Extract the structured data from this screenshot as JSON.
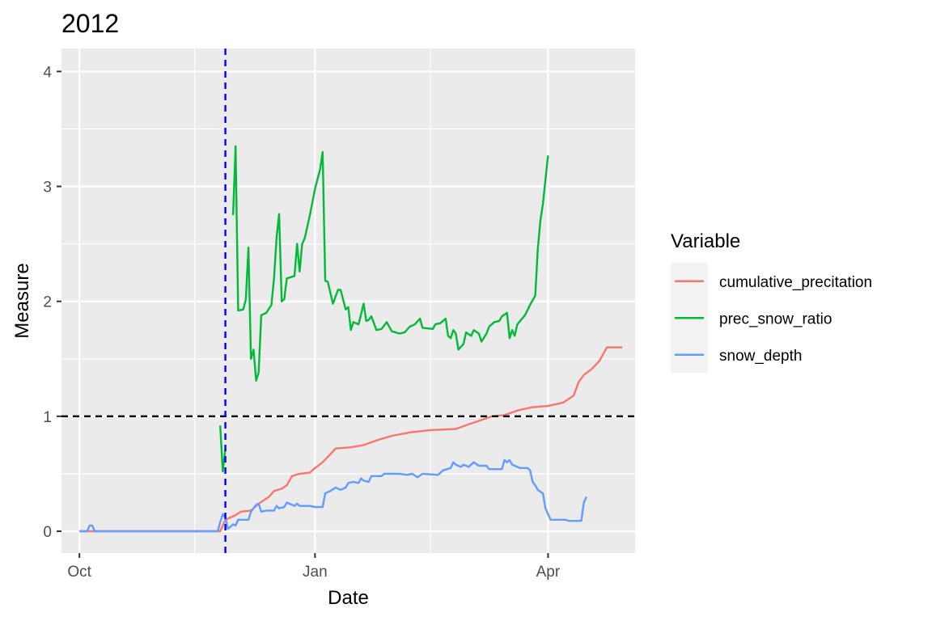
{
  "chart_data": {
    "type": "line",
    "title": "2012",
    "xlabel": "Date",
    "ylabel": "Measure",
    "x_type": "date",
    "xlim": [
      "2011-09-24",
      "2012-05-05"
    ],
    "ylim": [
      -0.19,
      4.2
    ],
    "x_ticks": [
      {
        "date": "2011-10-01",
        "label": "Oct"
      },
      {
        "date": "2012-01-01",
        "label": "Jan"
      },
      {
        "date": "2012-04-01",
        "label": "Apr"
      }
    ],
    "x_minor_ticks": [
      "2011-11-15",
      "2012-02-15"
    ],
    "y_ticks": [
      0,
      1,
      2,
      3,
      4
    ],
    "y_minor_ticks": [
      0.5,
      1.5,
      2.5,
      3.5
    ],
    "grid": true,
    "panel_background": "#EBEBEB",
    "reference_lines": [
      {
        "orientation": "horizontal",
        "value": 1,
        "style": "dashed",
        "color": "#000000"
      },
      {
        "orientation": "vertical",
        "value": "2011-11-27",
        "style": "dashed",
        "color": "#0000FF"
      }
    ],
    "legend": {
      "title": "Variable",
      "position": "right",
      "entries": [
        "cumulative_precitation",
        "prec_snow_ratio",
        "snow_depth"
      ]
    },
    "series": [
      {
        "name": "cumulative_precitation",
        "color": "#F8766D",
        "segments": [
          [
            [
              "2011-10-01",
              0
            ],
            [
              "2011-11-25",
              0
            ],
            [
              "2011-11-27",
              0.1
            ],
            [
              "2011-11-29",
              0.12
            ],
            [
              "2011-12-01",
              0.14
            ],
            [
              "2011-12-03",
              0.17
            ],
            [
              "2011-12-07",
              0.18
            ],
            [
              "2011-12-10",
              0.24
            ],
            [
              "2011-12-14",
              0.3
            ],
            [
              "2011-12-16",
              0.35
            ],
            [
              "2011-12-19",
              0.37
            ],
            [
              "2011-12-21",
              0.4
            ],
            [
              "2011-12-23",
              0.48
            ],
            [
              "2011-12-26",
              0.5
            ],
            [
              "2011-12-30",
              0.51
            ],
            [
              "2012-01-01",
              0.55
            ],
            [
              "2012-01-04",
              0.6
            ],
            [
              "2012-01-07",
              0.67
            ],
            [
              "2012-01-09",
              0.72
            ],
            [
              "2012-01-15",
              0.73
            ],
            [
              "2012-01-20",
              0.75
            ],
            [
              "2012-01-25",
              0.79
            ],
            [
              "2012-01-31",
              0.83
            ],
            [
              "2012-02-07",
              0.86
            ],
            [
              "2012-02-15",
              0.88
            ],
            [
              "2012-02-25",
              0.89
            ],
            [
              "2012-03-01",
              0.93
            ],
            [
              "2012-03-05",
              0.96
            ],
            [
              "2012-03-10",
              1.0
            ],
            [
              "2012-03-15",
              1.01
            ],
            [
              "2012-03-20",
              1.05
            ],
            [
              "2012-03-26",
              1.08
            ],
            [
              "2012-04-01",
              1.09
            ],
            [
              "2012-04-07",
              1.12
            ],
            [
              "2012-04-11",
              1.18
            ],
            [
              "2012-04-13",
              1.3
            ],
            [
              "2012-04-15",
              1.36
            ],
            [
              "2012-04-18",
              1.41
            ],
            [
              "2012-04-21",
              1.48
            ],
            [
              "2012-04-24",
              1.6
            ],
            [
              "2012-04-30",
              1.6
            ]
          ]
        ]
      },
      {
        "name": "prec_snow_ratio",
        "color": "#00BA38",
        "segments": [
          [
            [
              "2011-11-25",
              0.92
            ],
            [
              "2011-11-26",
              0.52
            ],
            [
              "2011-11-27",
              0.72
            ]
          ],
          [
            [
              "2011-11-30",
              2.75
            ],
            [
              "2011-12-01",
              3.35
            ],
            [
              "2011-12-02",
              1.92
            ],
            [
              "2011-12-04",
              1.93
            ],
            [
              "2011-12-05",
              2.02
            ],
            [
              "2011-12-06",
              2.47
            ],
            [
              "2011-12-07",
              1.5
            ],
            [
              "2011-12-08",
              1.58
            ],
            [
              "2011-12-09",
              1.31
            ],
            [
              "2011-12-10",
              1.38
            ],
            [
              "2011-12-11",
              1.88
            ],
            [
              "2011-12-13",
              1.9
            ],
            [
              "2011-12-15",
              1.97
            ],
            [
              "2011-12-16",
              2.2
            ],
            [
              "2011-12-17",
              2.56
            ],
            [
              "2011-12-18",
              2.76
            ],
            [
              "2011-12-19",
              2.0
            ],
            [
              "2011-12-20",
              2.02
            ],
            [
              "2011-12-21",
              2.2
            ],
            [
              "2011-12-24",
              2.22
            ],
            [
              "2011-12-25",
              2.5
            ],
            [
              "2011-12-26",
              2.26
            ],
            [
              "2011-12-27",
              2.5
            ],
            [
              "2011-12-28",
              2.55
            ],
            [
              "2011-12-30",
              2.75
            ],
            [
              "2012-01-01",
              2.98
            ],
            [
              "2012-01-03",
              3.15
            ],
            [
              "2012-01-04",
              3.3
            ],
            [
              "2012-01-05",
              2.18
            ],
            [
              "2012-01-06",
              2.17
            ],
            [
              "2012-01-08",
              1.98
            ],
            [
              "2012-01-10",
              2.1
            ],
            [
              "2012-01-11",
              2.1
            ],
            [
              "2012-01-13",
              1.93
            ],
            [
              "2012-01-14",
              1.95
            ],
            [
              "2012-01-15",
              1.75
            ],
            [
              "2012-01-16",
              1.82
            ],
            [
              "2012-01-18",
              1.8
            ],
            [
              "2012-01-20",
              1.98
            ],
            [
              "2012-01-21",
              1.83
            ],
            [
              "2012-01-22",
              1.84
            ],
            [
              "2012-01-23",
              1.87
            ],
            [
              "2012-01-25",
              1.75
            ],
            [
              "2012-01-27",
              1.76
            ],
            [
              "2012-01-29",
              1.82
            ],
            [
              "2012-01-31",
              1.74
            ],
            [
              "2012-02-03",
              1.72
            ],
            [
              "2012-02-05",
              1.73
            ],
            [
              "2012-02-07",
              1.78
            ],
            [
              "2012-02-09",
              1.8
            ],
            [
              "2012-02-11",
              1.85
            ],
            [
              "2012-02-12",
              1.77
            ],
            [
              "2012-02-16",
              1.76
            ],
            [
              "2012-02-17",
              1.8
            ],
            [
              "2012-02-19",
              1.81
            ],
            [
              "2012-02-21",
              1.85
            ],
            [
              "2012-02-22",
              1.7
            ],
            [
              "2012-02-23",
              1.68
            ],
            [
              "2012-02-24",
              1.75
            ],
            [
              "2012-02-25",
              1.72
            ],
            [
              "2012-02-26",
              1.58
            ],
            [
              "2012-02-28",
              1.63
            ],
            [
              "2012-02-29",
              1.73
            ],
            [
              "2012-03-02",
              1.7
            ],
            [
              "2012-03-03",
              1.75
            ],
            [
              "2012-03-05",
              1.72
            ],
            [
              "2012-03-06",
              1.65
            ],
            [
              "2012-03-08",
              1.72
            ],
            [
              "2012-03-09",
              1.78
            ],
            [
              "2012-03-11",
              1.82
            ],
            [
              "2012-03-13",
              1.83
            ],
            [
              "2012-03-14",
              1.87
            ],
            [
              "2012-03-16",
              1.9
            ],
            [
              "2012-03-17",
              1.68
            ],
            [
              "2012-03-18",
              1.75
            ],
            [
              "2012-03-19",
              1.7
            ],
            [
              "2012-03-20",
              1.8
            ],
            [
              "2012-03-23",
              1.88
            ],
            [
              "2012-03-25",
              1.97
            ],
            [
              "2012-03-27",
              2.05
            ],
            [
              "2012-03-28",
              2.45
            ],
            [
              "2012-03-29",
              2.7
            ],
            [
              "2012-03-30",
              2.85
            ],
            [
              "2012-04-01",
              3.27
            ]
          ]
        ]
      },
      {
        "name": "snow_depth",
        "color": "#619CFF",
        "segments": [
          [
            [
              "2011-10-01",
              0
            ],
            [
              "2011-10-04",
              0
            ],
            [
              "2011-10-05",
              0.05
            ],
            [
              "2011-10-06",
              0.05
            ],
            [
              "2011-10-07",
              0
            ],
            [
              "2011-11-24",
              0
            ],
            [
              "2011-11-25",
              0.08
            ],
            [
              "2011-11-26",
              0.15
            ],
            [
              "2011-11-27",
              0.12
            ],
            [
              "2011-11-28",
              0.02
            ],
            [
              "2011-11-30",
              0.06
            ],
            [
              "2011-12-01",
              0.05
            ],
            [
              "2011-12-02",
              0.1
            ],
            [
              "2011-12-06",
              0.1
            ],
            [
              "2011-12-07",
              0.17
            ],
            [
              "2011-12-09",
              0.23
            ],
            [
              "2011-12-10",
              0.24
            ],
            [
              "2011-12-11",
              0.17
            ],
            [
              "2011-12-13",
              0.18
            ],
            [
              "2011-12-16",
              0.18
            ],
            [
              "2011-12-17",
              0.22
            ],
            [
              "2011-12-18",
              0.2
            ],
            [
              "2011-12-20",
              0.21
            ],
            [
              "2011-12-21",
              0.25
            ],
            [
              "2011-12-24",
              0.22
            ],
            [
              "2011-12-25",
              0.24
            ],
            [
              "2011-12-26",
              0.22
            ],
            [
              "2011-12-30",
              0.22
            ],
            [
              "2012-01-01",
              0.21
            ],
            [
              "2012-01-04",
              0.21
            ],
            [
              "2012-01-05",
              0.33
            ],
            [
              "2012-01-07",
              0.35
            ],
            [
              "2012-01-09",
              0.38
            ],
            [
              "2012-01-11",
              0.36
            ],
            [
              "2012-01-13",
              0.38
            ],
            [
              "2012-01-14",
              0.42
            ],
            [
              "2012-01-16",
              0.43
            ],
            [
              "2012-01-18",
              0.42
            ],
            [
              "2012-01-19",
              0.46
            ],
            [
              "2012-01-20",
              0.44
            ],
            [
              "2012-01-22",
              0.43
            ],
            [
              "2012-01-23",
              0.48
            ],
            [
              "2012-01-27",
              0.48
            ],
            [
              "2012-01-28",
              0.5
            ],
            [
              "2012-02-03",
              0.5
            ],
            [
              "2012-02-06",
              0.49
            ],
            [
              "2012-02-08",
              0.5
            ],
            [
              "2012-02-10",
              0.47
            ],
            [
              "2012-02-12",
              0.5
            ],
            [
              "2012-02-18",
              0.49
            ],
            [
              "2012-02-20",
              0.53
            ],
            [
              "2012-02-23",
              0.55
            ],
            [
              "2012-02-24",
              0.6
            ],
            [
              "2012-02-25",
              0.58
            ],
            [
              "2012-02-27",
              0.56
            ],
            [
              "2012-02-28",
              0.58
            ],
            [
              "2012-03-01",
              0.56
            ],
            [
              "2012-03-03",
              0.6
            ],
            [
              "2012-03-05",
              0.57
            ],
            [
              "2012-03-08",
              0.57
            ],
            [
              "2012-03-09",
              0.54
            ],
            [
              "2012-03-14",
              0.54
            ],
            [
              "2012-03-15",
              0.62
            ],
            [
              "2012-03-16",
              0.6
            ],
            [
              "2012-03-17",
              0.62
            ],
            [
              "2012-03-18",
              0.58
            ],
            [
              "2012-03-20",
              0.56
            ],
            [
              "2012-03-21",
              0.55
            ],
            [
              "2012-03-24",
              0.55
            ],
            [
              "2012-03-25",
              0.53
            ],
            [
              "2012-03-26",
              0.43
            ],
            [
              "2012-03-27",
              0.4
            ],
            [
              "2012-03-28",
              0.36
            ],
            [
              "2012-03-30",
              0.33
            ],
            [
              "2012-03-31",
              0.2
            ],
            [
              "2012-04-02",
              0.1
            ],
            [
              "2012-04-07",
              0.1
            ],
            [
              "2012-04-08",
              0.1
            ],
            [
              "2012-04-09",
              0.09
            ],
            [
              "2012-04-14",
              0.09
            ],
            [
              "2012-04-15",
              0.25
            ],
            [
              "2012-04-16",
              0.3
            ]
          ]
        ]
      }
    ]
  }
}
